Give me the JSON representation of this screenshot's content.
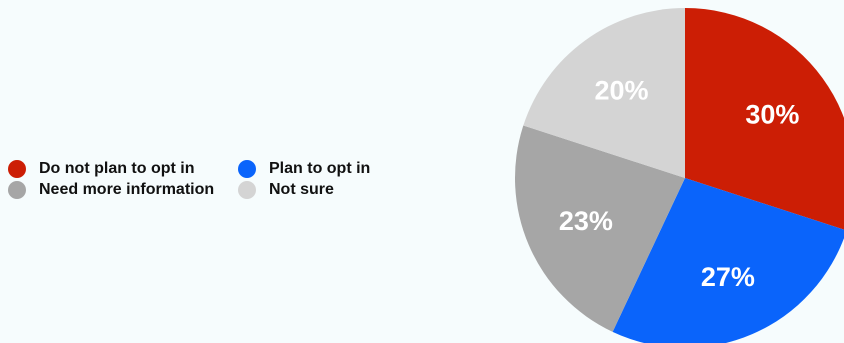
{
  "chart_data": {
    "type": "pie",
    "title": "",
    "legend_placement": "left",
    "slices": [
      {
        "label": "Do not plan to opt in",
        "value": 30,
        "display": "30%",
        "color": "#cc1e05"
      },
      {
        "label": "Plan to opt in",
        "value": 27,
        "display": "27%",
        "color": "#0a64fb"
      },
      {
        "label": "Need more information",
        "value": 23,
        "display": "23%",
        "color": "#a6a6a6"
      },
      {
        "label": "Not sure",
        "value": 20,
        "display": "20%",
        "color": "#d4d4d4"
      }
    ]
  },
  "legend": {
    "items": [
      {
        "label": "Do not plan to opt in",
        "color": "#cc1e05"
      },
      {
        "label": "Plan to opt in",
        "color": "#0a64fb"
      },
      {
        "label": "Need more information",
        "color": "#a6a6a6"
      },
      {
        "label": "Not sure",
        "color": "#d4d4d4"
      }
    ]
  }
}
